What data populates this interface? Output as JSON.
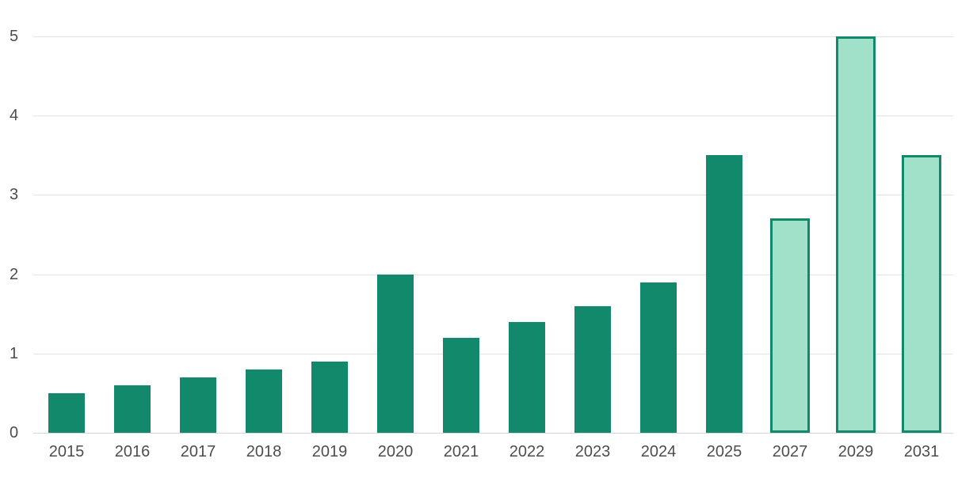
{
  "chart_data": {
    "type": "bar",
    "title": "",
    "categories": [
      "2015",
      "2016",
      "2017",
      "2018",
      "2019",
      "2020",
      "2021",
      "2022",
      "2023",
      "2024",
      "2025",
      "2027",
      "2029",
      "2031"
    ],
    "values": [
      0.5,
      0.6,
      0.7,
      0.8,
      0.9,
      2.0,
      1.2,
      1.4,
      1.6,
      1.9,
      3.5,
      2.7,
      5.0,
      3.5
    ],
    "is_forecast": [
      false,
      false,
      false,
      false,
      false,
      false,
      false,
      false,
      false,
      false,
      false,
      true,
      true,
      true
    ],
    "yticks": [
      "0",
      "1",
      "2",
      "3",
      "4",
      "5"
    ],
    "ylim": [
      0,
      5
    ],
    "grid": true,
    "legend_position": "none",
    "colors": {
      "bar_fill": "#12896b",
      "forecast_fill": "#a1e0c9",
      "forecast_border": "#12896b",
      "gridline": "#e2e2e2",
      "axis_baseline": "#d6d6d6",
      "tick_label": "#4d4d4d",
      "background": "#ffffff"
    }
  }
}
